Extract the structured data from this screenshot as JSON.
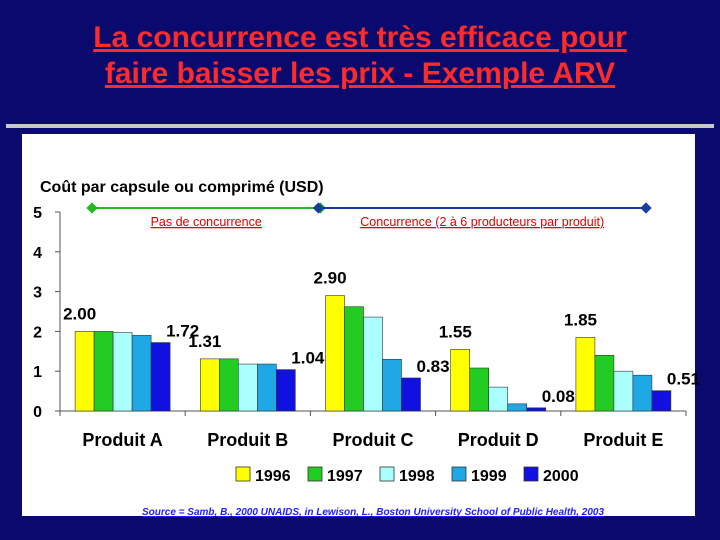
{
  "slide": {
    "title_line1": "La concurrence est très efficace pour",
    "title_line2": "faire baisser les prix - Exemple ARV",
    "source": "Source = Samb, B., 2000 UNAIDS, in Lewison, L., Boston University School of Public Health, 2003"
  },
  "chart_data": {
    "type": "bar",
    "title": "Coût par capsule ou comprimé (USD)",
    "categories": [
      "Produit A",
      "Produit B",
      "Produit C",
      "Produit D",
      "Produit E"
    ],
    "series": [
      {
        "name": "1996",
        "color": "#ffff00",
        "values": [
          2.0,
          1.31,
          2.9,
          1.55,
          1.85
        ]
      },
      {
        "name": "1997",
        "color": "#22cc22",
        "values": [
          2.0,
          1.31,
          2.62,
          1.08,
          1.4
        ]
      },
      {
        "name": "1998",
        "color": "#aaffff",
        "values": [
          1.97,
          1.18,
          2.36,
          0.6,
          1.0
        ]
      },
      {
        "name": "1999",
        "color": "#1ea8e6",
        "values": [
          1.9,
          1.18,
          1.3,
          0.18,
          0.9
        ]
      },
      {
        "name": "2000",
        "color": "#1010e0",
        "values": [
          1.72,
          1.04,
          0.83,
          0.08,
          0.51
        ]
      }
    ],
    "ylim": [
      0,
      5
    ],
    "yticks": [
      0,
      1,
      2,
      3,
      4,
      5
    ],
    "legend_position": "bottom",
    "data_labels": [
      {
        "category": "Produit A",
        "series": "1996",
        "text": "2.00"
      },
      {
        "category": "Produit A",
        "series": "2000",
        "text": "1.72"
      },
      {
        "category": "Produit B",
        "series": "1996",
        "text": "1.31"
      },
      {
        "category": "Produit B",
        "series": "2000",
        "text": "1.04"
      },
      {
        "category": "Produit C",
        "series": "1996",
        "text": "2.90"
      },
      {
        "category": "Produit C",
        "series": "2000",
        "text": "0.83"
      },
      {
        "category": "Produit D",
        "series": "1996",
        "text": "1.55"
      },
      {
        "category": "Produit D",
        "series": "2000",
        "text": "0.08"
      },
      {
        "category": "Produit E",
        "series": "1996",
        "text": "1.85"
      },
      {
        "category": "Produit E",
        "series": "2000",
        "text": "0.51"
      }
    ],
    "annotations": [
      {
        "text": "Pas de concurrence",
        "categories": [
          "Produit A",
          "Produit B"
        ],
        "color": "#22bb22"
      },
      {
        "text": "Concurrence (2 à 6 producteurs par produit)",
        "categories": [
          "Produit C",
          "Produit D",
          "Produit E"
        ],
        "color": "#1a3aa0"
      }
    ]
  }
}
